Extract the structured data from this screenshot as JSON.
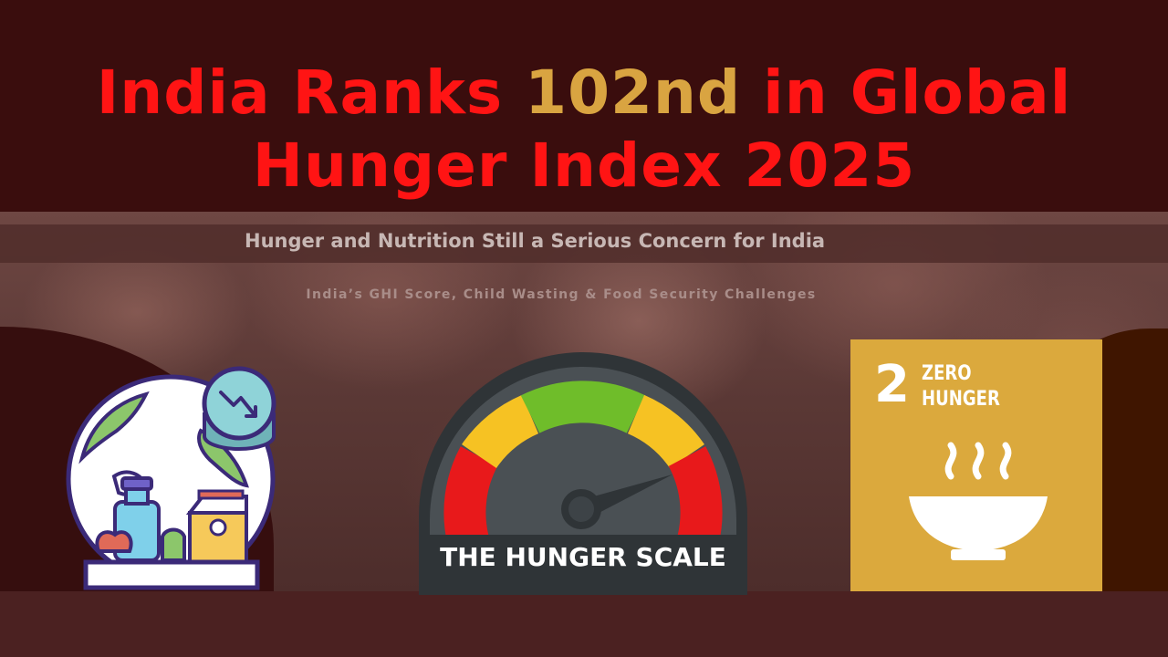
{
  "header": {
    "title_part1": "India Ranks ",
    "title_highlight": "102nd",
    "title_part2": " in Global",
    "title_line2": "Hunger Index 2025"
  },
  "subtitle": "Hunger and Nutrition Still a Serious Concern for India",
  "tagline": "India’s GHI Score, Child Wasting & Food Security Challenges",
  "gauge": {
    "label": "THE HUNGER SCALE",
    "icon": "hunger-scale-gauge-icon"
  },
  "sdg": {
    "number": "2",
    "text": "ZERO HUNGER",
    "icon": "bowl-with-steam-icon"
  },
  "globe_icon": "globe-food-decline-icon",
  "colors": {
    "title_red": "#ff1414",
    "title_gold": "#d9a441",
    "sdg_gold": "#dba93d",
    "gauge_red": "#e8191b",
    "gauge_yellow": "#f6c223",
    "gauge_green": "#6fbd2a"
  }
}
